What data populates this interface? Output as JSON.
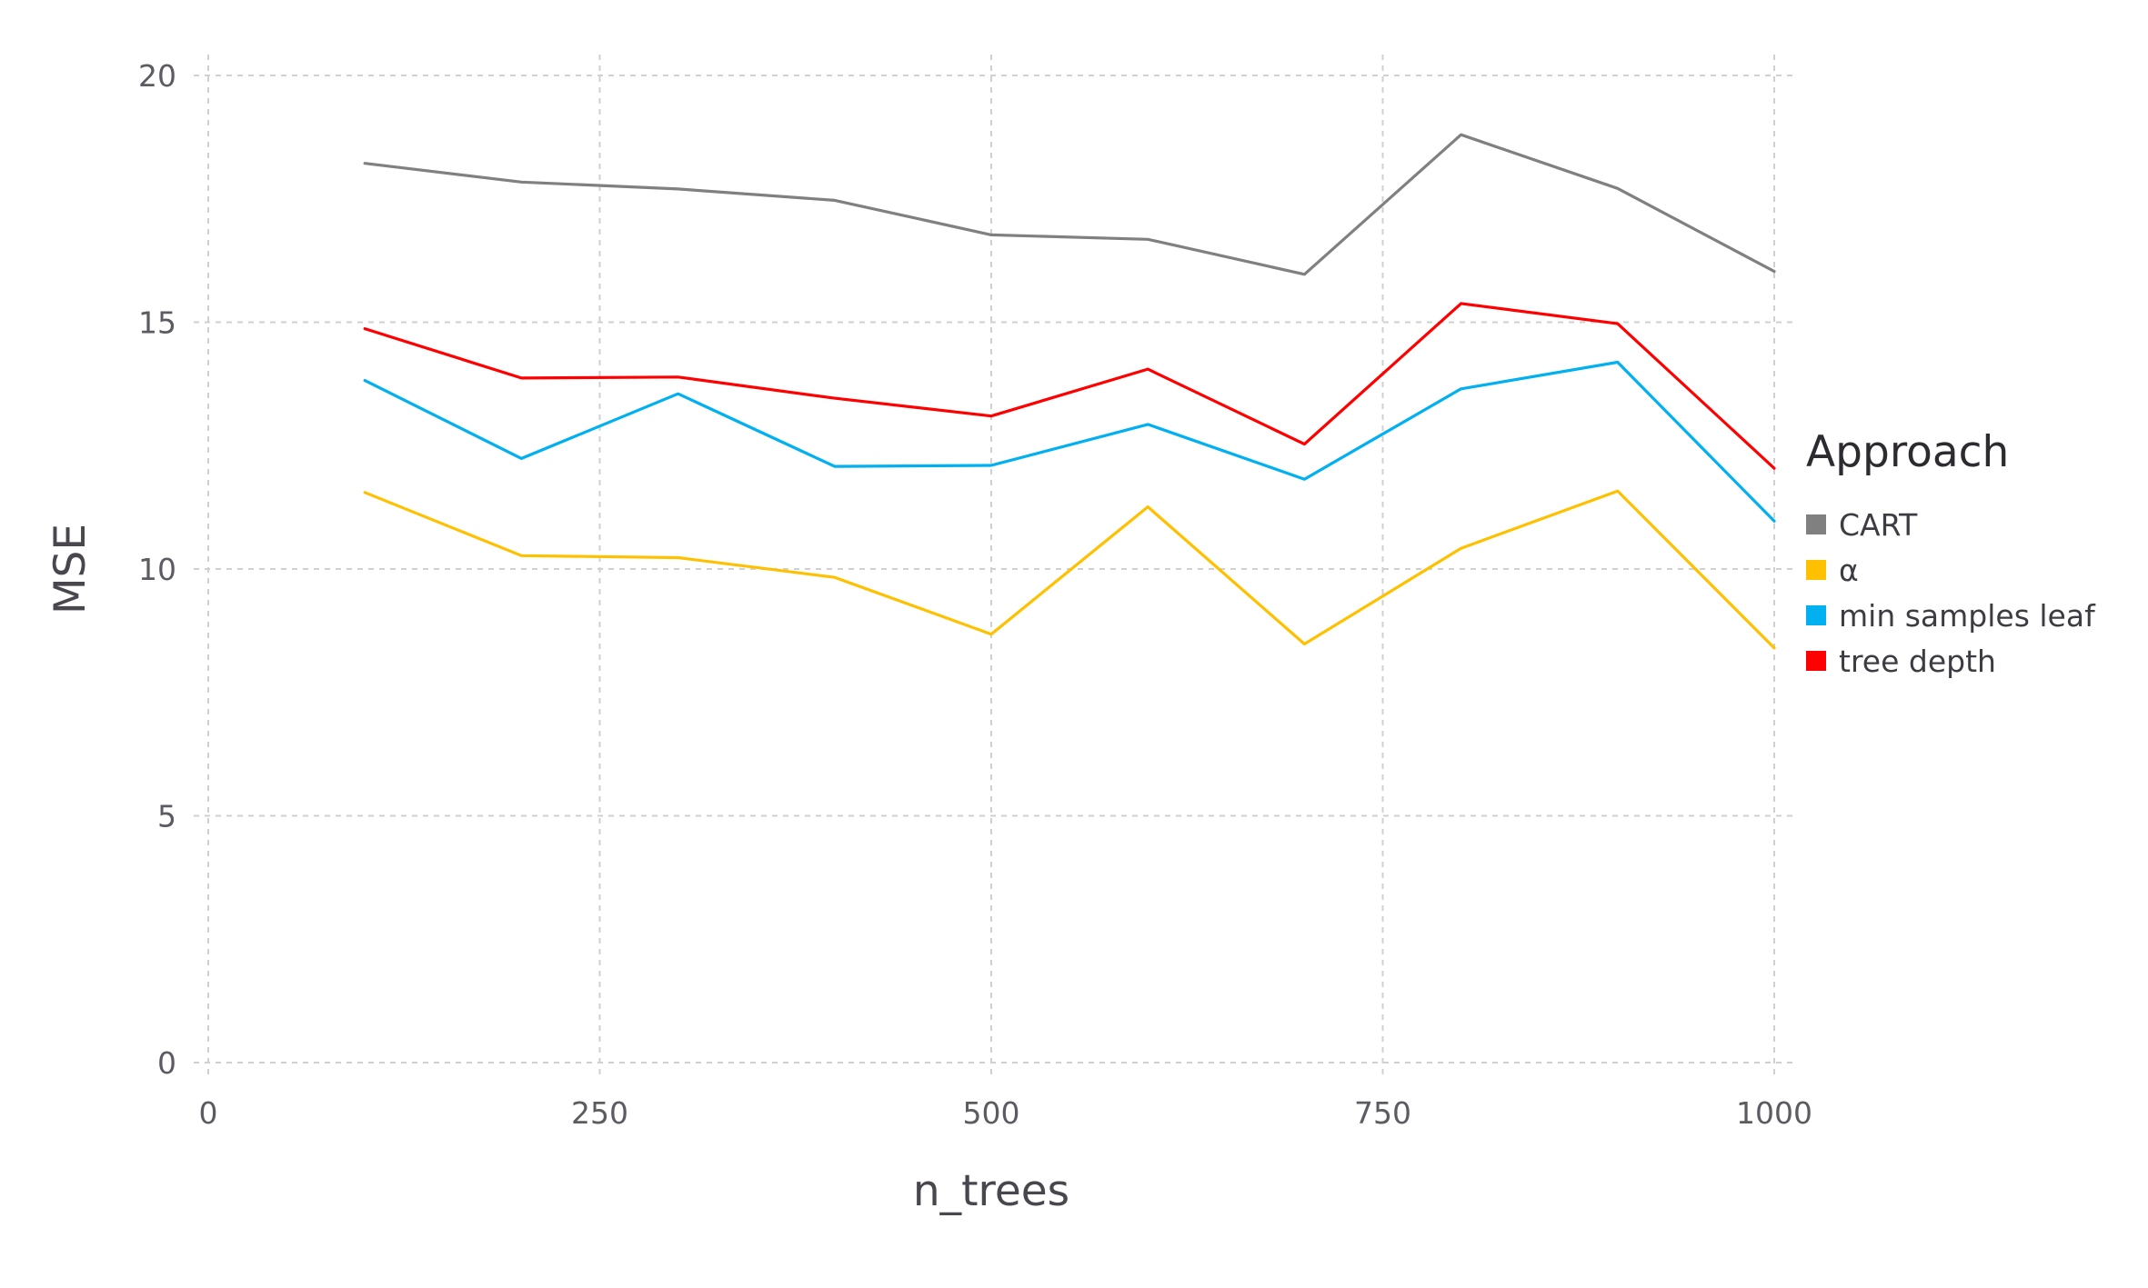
{
  "chart_data": {
    "type": "line",
    "title": "",
    "xlabel": "n_trees",
    "ylabel": "MSE",
    "xlim": [
      0,
      1000
    ],
    "ylim": [
      0,
      20
    ],
    "xticks": [
      0,
      250,
      500,
      750,
      1000
    ],
    "xtick_labels": [
      "0",
      "250",
      "500",
      "750",
      "1000"
    ],
    "yticks": [
      0,
      5,
      10,
      15,
      20
    ],
    "ytick_labels": [
      "0",
      "5",
      "10",
      "15",
      "20"
    ],
    "grid": true,
    "legend": {
      "title": "Approach",
      "placement": "right"
    },
    "x": [
      100,
      200,
      300,
      400,
      500,
      600,
      700,
      800,
      900,
      1000
    ],
    "series": [
      {
        "name": "CART",
        "color": "#808080",
        "values": [
          18.22,
          17.84,
          17.7,
          17.47,
          16.77,
          16.68,
          15.97,
          18.8,
          17.71,
          16.03
        ]
      },
      {
        "name": "α",
        "color": "#ffc000",
        "values": [
          11.55,
          10.27,
          10.23,
          9.83,
          8.68,
          11.26,
          8.48,
          10.42,
          11.58,
          8.4
        ]
      },
      {
        "name": "min samples leaf",
        "color": "#00b0f0",
        "values": [
          13.82,
          12.24,
          13.55,
          12.08,
          12.1,
          12.93,
          11.82,
          13.65,
          14.19,
          10.97
        ]
      },
      {
        "name": "tree depth",
        "color": "#ff0000",
        "values": [
          14.87,
          13.87,
          13.89,
          13.46,
          13.1,
          14.05,
          12.53,
          15.38,
          14.97,
          12.04
        ]
      }
    ]
  }
}
